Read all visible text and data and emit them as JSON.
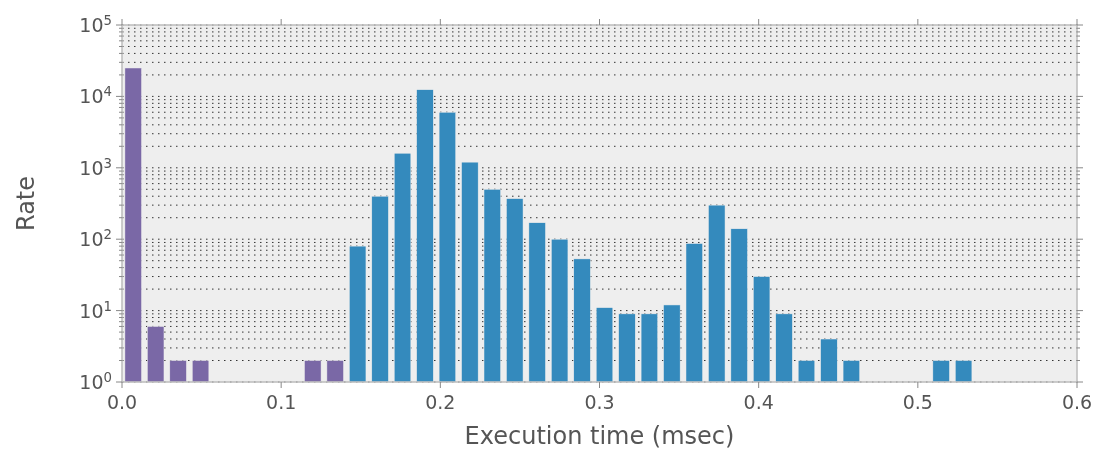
{
  "chart_data": {
    "type": "histogram",
    "xlabel": "Execution time (msec)",
    "ylabel": "Rate",
    "bins": [
      0,
      0.0141,
      0.0282,
      0.0423,
      0.0564,
      0.0705,
      0.0846,
      0.0987,
      0.1128,
      0.1269,
      0.141,
      0.1551,
      0.1692,
      0.1833,
      0.1974,
      0.2115,
      0.2256,
      0.2397,
      0.2538,
      0.2679,
      0.282,
      0.2961,
      0.3102,
      0.3243,
      0.3384,
      0.3525,
      0.3666,
      0.3807,
      0.3948,
      0.4089,
      0.423,
      0.4371,
      0.4512,
      0.4653,
      0.4794,
      0.4935,
      0.5076,
      0.5217,
      0.5358
    ],
    "values": [
      25000,
      6,
      2,
      2,
      null,
      null,
      null,
      null,
      2,
      2,
      80,
      400,
      1600,
      12400,
      6000,
      1200,
      500,
      370,
      170,
      100,
      53,
      11,
      9,
      9,
      12,
      87,
      300,
      140,
      30,
      9,
      2,
      4,
      2,
      null,
      null,
      null,
      2,
      2
    ],
    "colors": [
      "#7a68a6",
      "#7a68a6",
      "#7a68a6",
      "#7a68a6",
      "#7a68a6",
      "#7a68a6",
      "#7a68a6",
      "#7a68a6",
      "#7a68a6",
      "#7a68a6",
      "#348abd",
      "#348abd",
      "#348abd",
      "#348abd",
      "#348abd",
      "#348abd",
      "#348abd",
      "#348abd",
      "#348abd",
      "#348abd",
      "#348abd",
      "#348abd",
      "#348abd",
      "#348abd",
      "#348abd",
      "#348abd",
      "#348abd",
      "#348abd",
      "#348abd",
      "#348abd",
      "#348abd",
      "#348abd",
      "#348abd",
      "#348abd",
      "#348abd",
      "#348abd",
      "#348abd",
      "#348abd"
    ],
    "xlim": [
      0,
      0.6
    ],
    "xticks": [
      {
        "value": 0,
        "label": "0.0"
      },
      0.1,
      0.2,
      0.3,
      0.4,
      0.5,
      0.6
    ],
    "ylim": [
      1,
      100000
    ],
    "yticks": [
      {
        "value": 1,
        "label": "10$^{0}$"
      },
      {
        "value": 10,
        "label": "10$^{1}$"
      },
      {
        "value": 100,
        "label": "10$^{2}$"
      },
      {
        "value": 1000,
        "label": "10$^{3}$"
      },
      {
        "value": 10000,
        "label": "10$^{4}$"
      },
      {
        "value": 100000,
        "label": "10$^{5}$"
      }
    ],
    "log": true,
    "grid": "y"
  }
}
